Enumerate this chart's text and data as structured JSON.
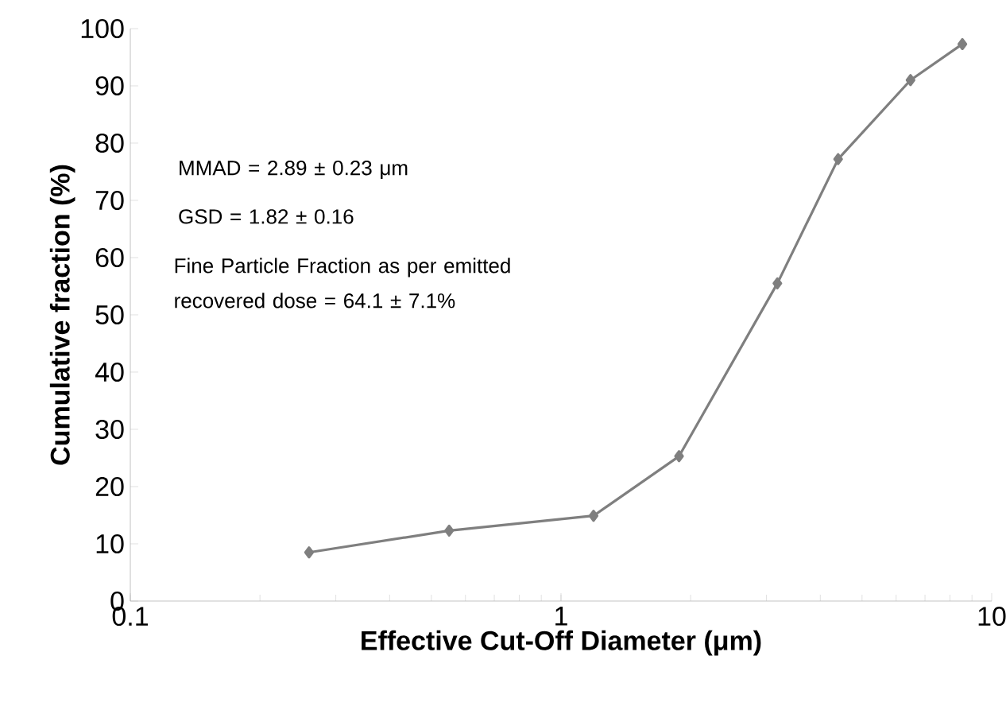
{
  "chart_data": {
    "type": "line",
    "xlabel": "Effective Cut-Off Diameter (μm)",
    "ylabel": "Cumulative fraction (%)",
    "x": [
      0.26,
      0.55,
      1.19,
      1.88,
      3.18,
      4.4,
      6.48,
      8.55
    ],
    "series": [
      {
        "color": "#7f7f7f",
        "values": [
          8.5,
          12.3,
          14.9,
          25.3,
          55.5,
          77.2,
          91.0,
          97.3
        ]
      }
    ],
    "log": "x",
    "xlim": [
      0.1,
      10
    ],
    "xticks": [
      0.1,
      1,
      10
    ],
    "ylim": [
      0,
      100
    ],
    "yticks": [
      0,
      10,
      20,
      30,
      40,
      50,
      60,
      70,
      80,
      90,
      100
    ],
    "marker": "diamond",
    "line_style": "solid",
    "annotations": [
      "MMAD = 2.89 ± 0.23 μm",
      "GSD = 1.82 ± 0.16",
      "Fine Particle Fraction as per emitted recovered dose = 64.1 ± 7.1%"
    ]
  }
}
